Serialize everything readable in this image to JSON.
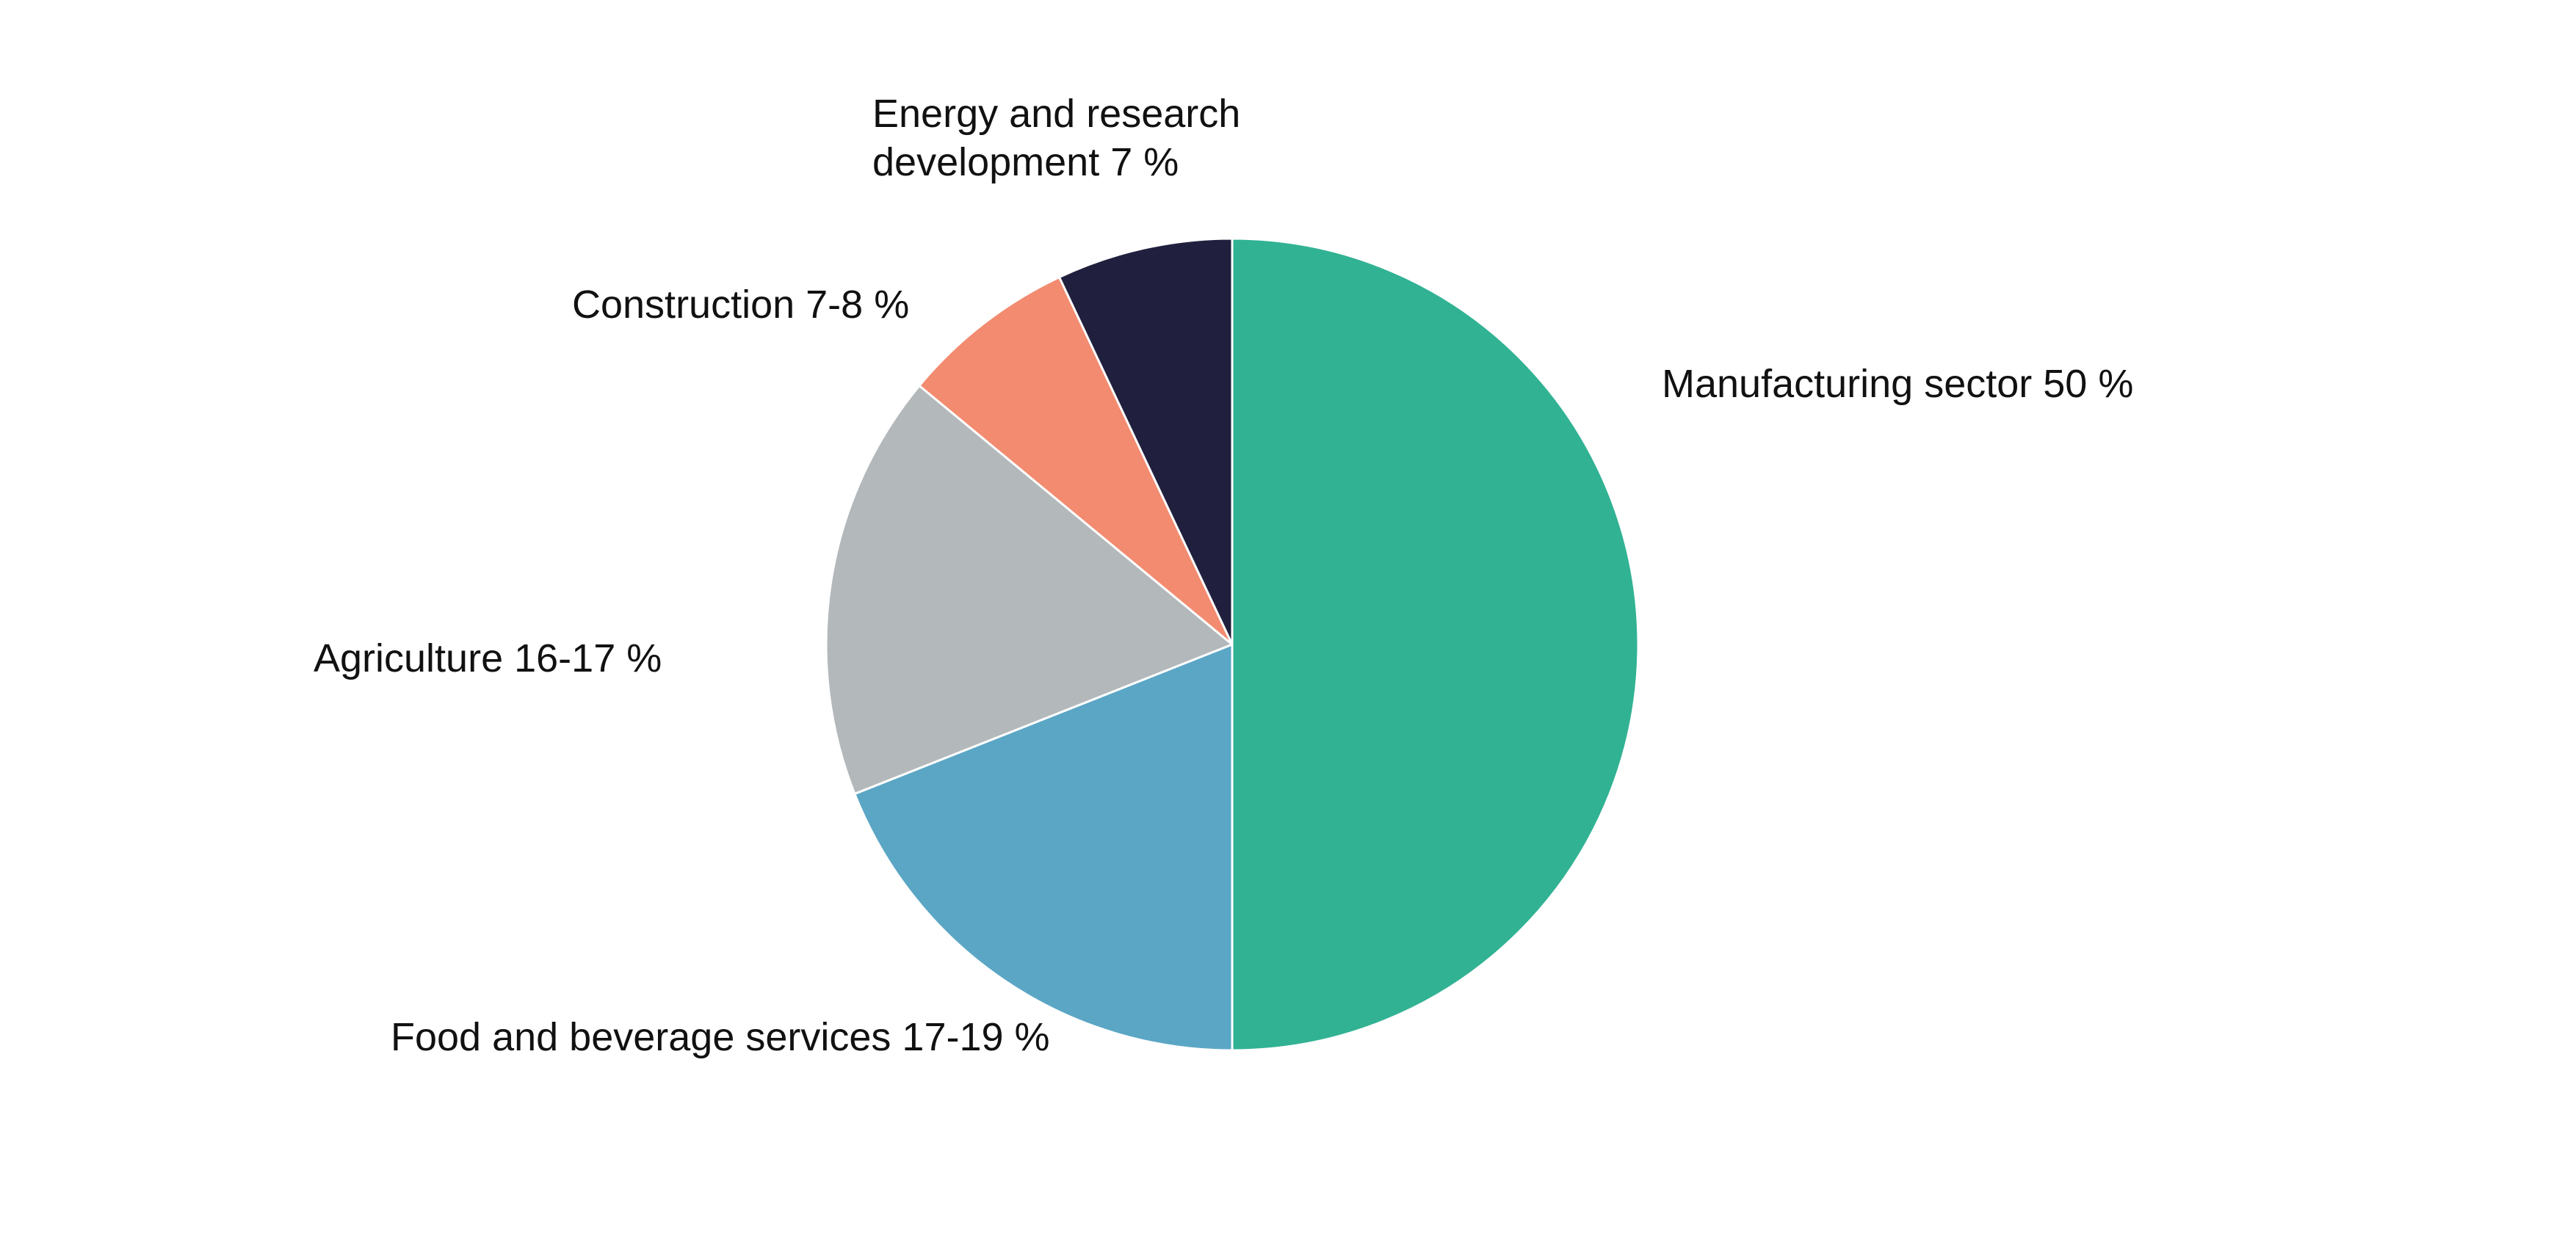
{
  "chart_data": {
    "type": "pie",
    "title": "",
    "start_angle_deg": 0,
    "direction": "clockwise",
    "slice_border_color": "#ffffff",
    "slices": [
      {
        "name": "Manufacturing sector",
        "label_lines": [
          "Manufacturing sector 50 %"
        ],
        "value": 50,
        "color": "#31b293"
      },
      {
        "name": "Food and beverage services",
        "label_lines": [
          "Food and beverage services 17-19 %"
        ],
        "value": 19,
        "color": "#5ba6c5"
      },
      {
        "name": "Agriculture",
        "label_lines": [
          "Agriculture 16-17 %"
        ],
        "value": 17,
        "color": "#b3b8bb"
      },
      {
        "name": "Construction",
        "label_lines": [
          "Construction 7-8 %"
        ],
        "value": 7,
        "color": "#f28b70"
      },
      {
        "name": "Energy and research development",
        "label_lines": [
          "Energy and research",
          "development 7 %"
        ],
        "value": 7,
        "color": "#20203e"
      }
    ]
  }
}
